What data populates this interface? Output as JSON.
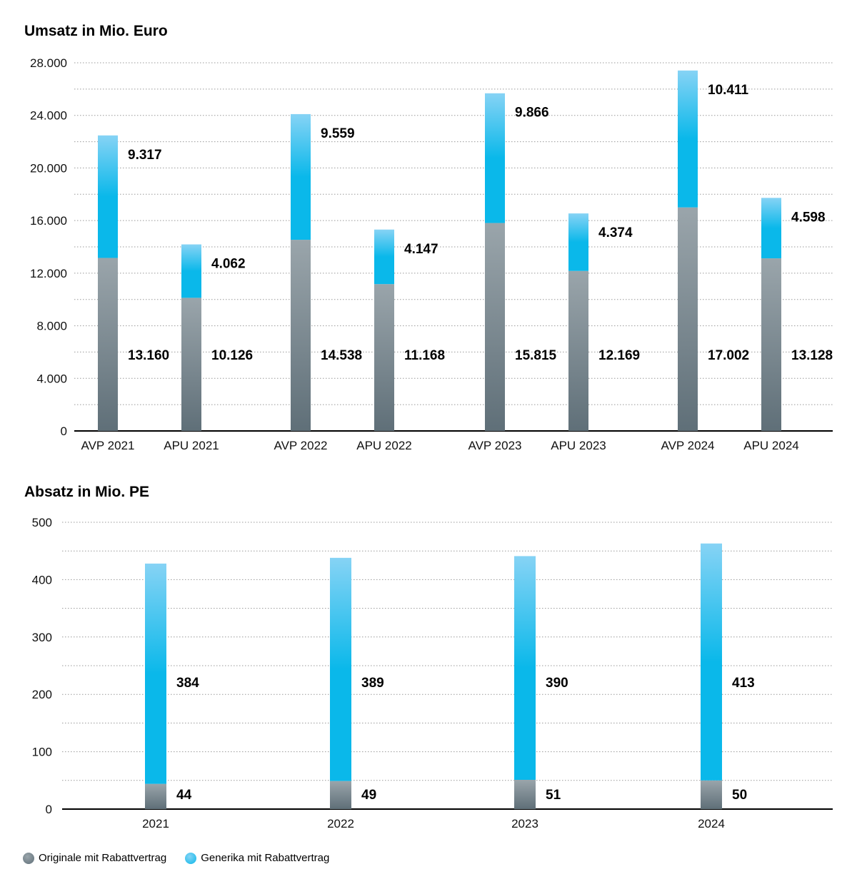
{
  "colors": {
    "originale": "#5f6f78",
    "originale_light": "#9aa5ab",
    "generika": "#0ab8ea",
    "generika_light": "#86d3f5",
    "grid": "#999999",
    "axis": "#000000"
  },
  "chart_data": [
    {
      "type": "bar",
      "stacked": true,
      "title": "Umsatz in Mio. Euro",
      "categories": [
        "AVP 2021",
        "APU 2021",
        "AVP 2022",
        "APU 2022",
        "AVP 2023",
        "APU 2023",
        "AVP 2024",
        "APU 2024"
      ],
      "series": [
        {
          "name": "Originale mit Rabattvertrag",
          "values": [
            13160,
            10126,
            14538,
            11168,
            15815,
            12169,
            17002,
            13128
          ],
          "labels": [
            "13.160",
            "10.126",
            "14.538",
            "11.168",
            "15.815",
            "12.169",
            "17.002",
            "13.128"
          ]
        },
        {
          "name": "Generika mit Rabattvertrag",
          "values": [
            9317,
            4062,
            9559,
            4147,
            9866,
            4374,
            10411,
            4598
          ],
          "labels": [
            "9.317",
            "4.062",
            "9.559",
            "4.147",
            "9.866",
            "4.374",
            "10.411",
            "4.598"
          ]
        }
      ],
      "ylim": [
        0,
        28000
      ],
      "yticks": [
        0,
        4000,
        8000,
        12000,
        16000,
        20000,
        24000,
        28000
      ],
      "ytick_labels": [
        "0",
        "4.000",
        "8.000",
        "12.000",
        "16.000",
        "20.000",
        "24.000",
        "28.000"
      ],
      "grid": true
    },
    {
      "type": "bar",
      "stacked": true,
      "title": "Absatz in Mio. PE",
      "categories": [
        "2021",
        "2022",
        "2023",
        "2024"
      ],
      "series": [
        {
          "name": "Originale mit Rabattvertrag",
          "values": [
            44,
            49,
            51,
            50
          ],
          "labels": [
            "44",
            "49",
            "51",
            "50"
          ]
        },
        {
          "name": "Generika mit Rabattvertrag",
          "values": [
            384,
            389,
            390,
            413
          ],
          "labels": [
            "384",
            "389",
            "390",
            "413"
          ]
        }
      ],
      "ylim": [
        0,
        500
      ],
      "yticks": [
        0,
        100,
        200,
        300,
        400,
        500
      ],
      "ytick_labels": [
        "0",
        "100",
        "200",
        "300",
        "400",
        "500"
      ],
      "grid": true
    }
  ],
  "legend": [
    {
      "label": "Originale mit Rabattvertrag",
      "color": "#5f6f78"
    },
    {
      "label": "Generika mit Rabattvertrag",
      "color": "#0ab8ea"
    }
  ]
}
